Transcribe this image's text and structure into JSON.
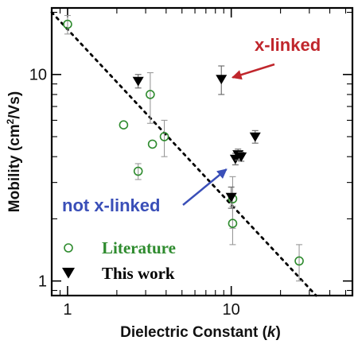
{
  "chart_data": {
    "type": "scatter",
    "xlabel_prefix": "Dielectric Constant (",
    "xlabel_var": "k",
    "xlabel_suffix": ")",
    "ylabel_main": "Mobility (cm",
    "ylabel_sup": "2",
    "ylabel_end": "/Vs)",
    "x_scale": "log",
    "y_scale": "log",
    "xlim": [
      0.8,
      55
    ],
    "ylim": [
      0.85,
      21
    ],
    "x_ticks": [
      {
        "value": 1,
        "label": "1"
      },
      {
        "value": 10,
        "label": "10"
      }
    ],
    "y_ticks": [
      {
        "value": 1,
        "label": "1"
      },
      {
        "value": 10,
        "label": "10"
      }
    ],
    "grid": false,
    "legend_position": "bottom-left",
    "series": [
      {
        "name": "Literature",
        "marker": "open-circle",
        "color": "#2e8b2e",
        "points": [
          {
            "x": 1.0,
            "y": 17.5,
            "err": 1.8
          },
          {
            "x": 2.2,
            "y": 5.7,
            "err": null
          },
          {
            "x": 2.7,
            "y": 3.4,
            "err": 0.3
          },
          {
            "x": 3.2,
            "y": 8.0,
            "err": 2.2
          },
          {
            "x": 3.3,
            "y": 4.6,
            "err": null
          },
          {
            "x": 3.9,
            "y": 5.0,
            "err": 1.0
          },
          {
            "x": 10.2,
            "y": 2.5,
            "err": 0.7
          },
          {
            "x": 10.2,
            "y": 1.9,
            "err": 0.4
          },
          {
            "x": 26.0,
            "y": 1.25,
            "err": 0.25
          }
        ]
      },
      {
        "name": "This work",
        "marker": "filled-triangle-down",
        "color": "#000000",
        "points": [
          {
            "x": 2.7,
            "y": 9.3,
            "err": 0.7
          },
          {
            "x": 8.7,
            "y": 9.5,
            "err": 1.5
          },
          {
            "x": 10.0,
            "y": 2.55,
            "err": 0.3
          },
          {
            "x": 10.6,
            "y": 3.9,
            "err": 0.25
          },
          {
            "x": 11.0,
            "y": 4.1,
            "err": 0.25
          },
          {
            "x": 11.5,
            "y": 4.0,
            "err": 0.2
          },
          {
            "x": 14.0,
            "y": 5.0,
            "err": 0.35
          }
        ]
      }
    ],
    "fit_line": {
      "x": [
        0.8,
        33
      ],
      "y": [
        20.0,
        0.85
      ]
    },
    "annotations": [
      {
        "text": "x-linked",
        "color": "#c0262c",
        "target": {
          "x": 8.7,
          "y": 9.5
        }
      },
      {
        "text": "not x-linked",
        "color": "#3a4fb8",
        "target": {
          "x": 10.0,
          "y": 3.6
        }
      }
    ]
  }
}
